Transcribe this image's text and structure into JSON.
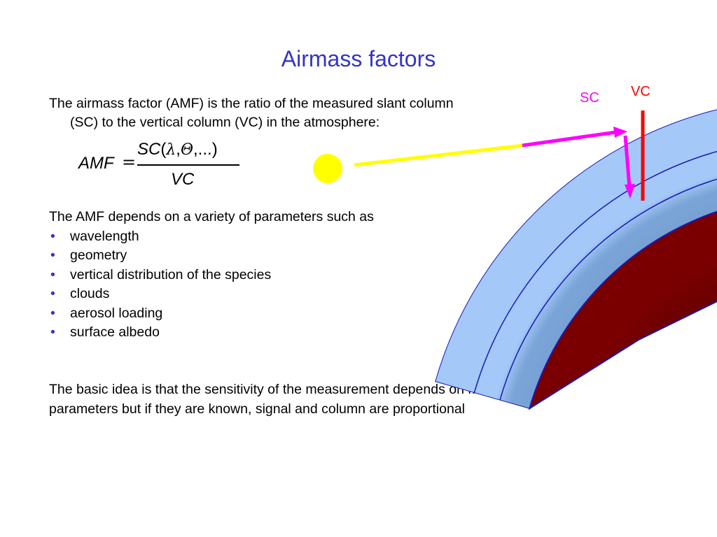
{
  "slide": {
    "title": "Airmass factors",
    "intro_line1": "The airmass factor (AMF) is the ratio of the measured slant column",
    "intro_line2": "(SC) to the vertical column (VC) in the atmosphere:",
    "formula": {
      "lhs": "AMF",
      "equals": "=",
      "numerator_sc": "SC",
      "numerator_open": "(",
      "numerator_lambda": "λ",
      "numerator_comma1": ",",
      "numerator_theta": "Θ",
      "numerator_rest": ",...)",
      "denominator": "VC"
    },
    "params_heading": "The AMF depends on a variety of parameters such as",
    "bullet_symbol": "•",
    "params": [
      "wavelength",
      "geometry",
      "vertical distribution of the species",
      "clouds",
      "aerosol loading",
      "surface albedo"
    ],
    "basic_line1": "The basic idea is that the sensitivity of the measurement depends on many",
    "basic_line2": "parameters but if they are known, signal and column are proportional"
  },
  "diagram": {
    "sc_label": "SC",
    "vc_label": "VC",
    "colors": {
      "title": "#3333cc",
      "bullet": "#3333cc",
      "sun": "#ffff00",
      "sun_ray": "#ffff00",
      "slant_path": "#ff00ff",
      "vertical_column": "#ff0000",
      "atmosphere_light": "#a4c8f8",
      "atmosphere_mid": "#7ba5d8",
      "atmosphere_inner": "#6f96c8",
      "layer_line": "#1a1ab3",
      "earth_outer": "#7a0000",
      "earth_inner": "#3a0000"
    }
  }
}
